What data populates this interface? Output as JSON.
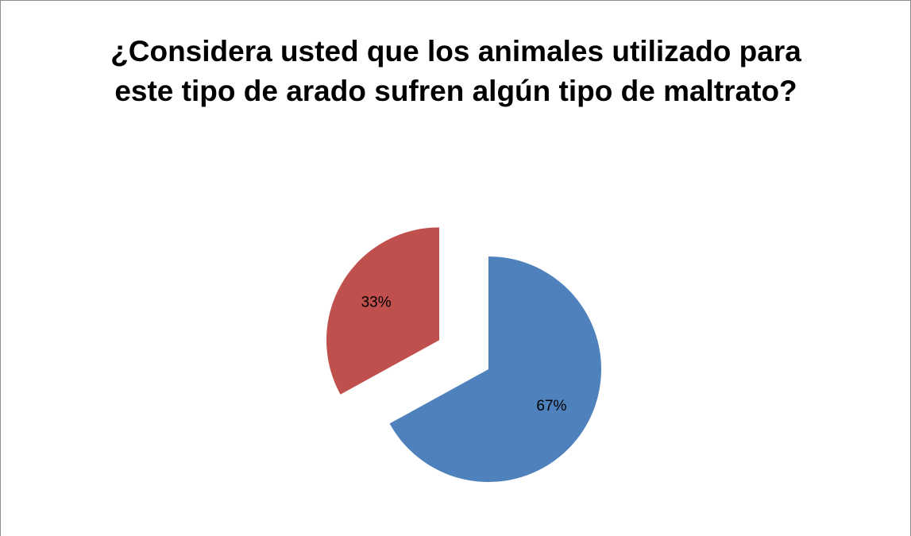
{
  "chart_data": {
    "type": "pie",
    "title": "¿Considera usted que los animales utilizado para este tipo de arado sufren algún tipo de maltrato?",
    "series": [
      {
        "values": [
          67,
          33
        ],
        "value_labels": [
          "67%",
          "33%"
        ],
        "colors": [
          "#4f81bd",
          "#c0504d"
        ]
      }
    ]
  }
}
